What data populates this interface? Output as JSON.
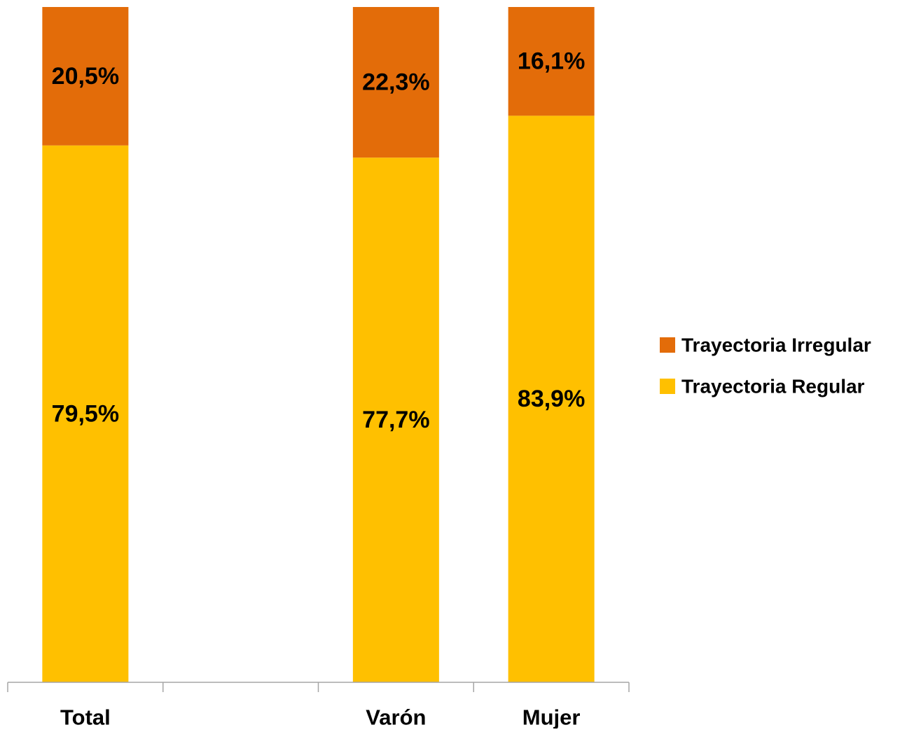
{
  "chart_data": {
    "type": "bar",
    "stacked": true,
    "title": "",
    "xlabel": "",
    "ylabel": "",
    "ylim": [
      0,
      100
    ],
    "grid": false,
    "legend_position": "right",
    "categories": [
      "Total",
      "",
      "Varón",
      "Mujer"
    ],
    "series": [
      {
        "name": "Trayectoria Regular",
        "color": "#FFC000",
        "values": [
          79.5,
          null,
          77.7,
          83.9
        ],
        "labels": [
          "79,5%",
          "",
          "77,7%",
          "83,9%"
        ]
      },
      {
        "name": "Trayectoria Irregular",
        "color": "#E36C09",
        "values": [
          20.5,
          null,
          22.3,
          16.1
        ],
        "labels": [
          "20,5%",
          "",
          "22,3%",
          "16,1%"
        ]
      }
    ],
    "legend_order": [
      "Trayectoria Irregular",
      "Trayectoria Regular"
    ]
  }
}
